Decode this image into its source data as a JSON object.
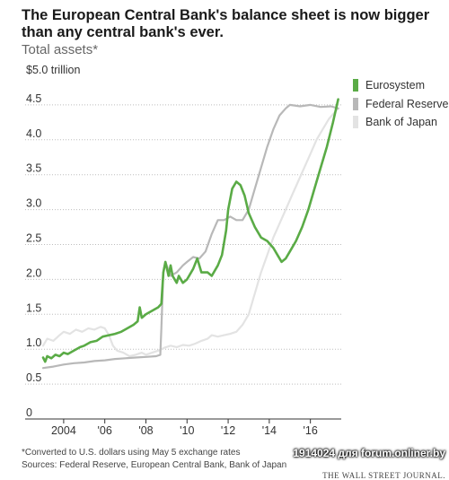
{
  "chart_data": {
    "type": "line",
    "title": "The European Central Bank's balance sheet is now bigger than any central bank's ever.",
    "subtitle": "Total assets*",
    "ylabel": "",
    "unit_label": "$5.0 trillion",
    "ylim": [
      0,
      5.0
    ],
    "xlim": [
      2003.0,
      2017.5
    ],
    "y_ticks": [
      {
        "value": 0,
        "label": "0"
      },
      {
        "value": 0.5,
        "label": "0.5"
      },
      {
        "value": 1.0,
        "label": "1.0"
      },
      {
        "value": 1.5,
        "label": "1.5"
      },
      {
        "value": 2.0,
        "label": "2.0"
      },
      {
        "value": 2.5,
        "label": "2.5"
      },
      {
        "value": 3.0,
        "label": "3.0"
      },
      {
        "value": 3.5,
        "label": "3.5"
      },
      {
        "value": 4.0,
        "label": "4.0"
      },
      {
        "value": 4.5,
        "label": "4.5"
      }
    ],
    "x_ticks": [
      {
        "value": 2004,
        "label": "2004"
      },
      {
        "value": 2006,
        "label": "'06"
      },
      {
        "value": 2008,
        "label": "'08"
      },
      {
        "value": 2010,
        "label": "'10"
      },
      {
        "value": 2012,
        "label": "'12"
      },
      {
        "value": 2014,
        "label": "'14"
      },
      {
        "value": 2016,
        "label": "'16"
      }
    ],
    "grid": true,
    "legend_position": "right",
    "series": [
      {
        "name": "Bank of Japan",
        "color": "#e3e3e3",
        "points": [
          [
            2003.0,
            1.05
          ],
          [
            2003.2,
            1.15
          ],
          [
            2003.5,
            1.12
          ],
          [
            2003.8,
            1.2
          ],
          [
            2004.0,
            1.25
          ],
          [
            2004.3,
            1.22
          ],
          [
            2004.6,
            1.28
          ],
          [
            2004.9,
            1.25
          ],
          [
            2005.2,
            1.3
          ],
          [
            2005.5,
            1.28
          ],
          [
            2005.8,
            1.32
          ],
          [
            2006.0,
            1.3
          ],
          [
            2006.2,
            1.2
          ],
          [
            2006.4,
            1.05
          ],
          [
            2006.6,
            0.98
          ],
          [
            2006.9,
            0.95
          ],
          [
            2007.2,
            0.9
          ],
          [
            2007.5,
            0.92
          ],
          [
            2007.8,
            0.95
          ],
          [
            2008.0,
            0.92
          ],
          [
            2008.3,
            0.95
          ],
          [
            2008.6,
            0.98
          ],
          [
            2008.9,
            1.02
          ],
          [
            2009.2,
            1.05
          ],
          [
            2009.5,
            1.03
          ],
          [
            2009.8,
            1.06
          ],
          [
            2010.1,
            1.05
          ],
          [
            2010.4,
            1.08
          ],
          [
            2010.7,
            1.12
          ],
          [
            2011.0,
            1.15
          ],
          [
            2011.2,
            1.2
          ],
          [
            2011.5,
            1.18
          ],
          [
            2011.8,
            1.2
          ],
          [
            2012.1,
            1.22
          ],
          [
            2012.4,
            1.25
          ],
          [
            2012.7,
            1.35
          ],
          [
            2013.0,
            1.5
          ],
          [
            2013.3,
            1.8
          ],
          [
            2013.6,
            2.1
          ],
          [
            2013.9,
            2.35
          ],
          [
            2014.2,
            2.6
          ],
          [
            2014.5,
            2.8
          ],
          [
            2014.8,
            3.0
          ],
          [
            2015.1,
            3.2
          ],
          [
            2015.4,
            3.4
          ],
          [
            2015.7,
            3.6
          ],
          [
            2016.0,
            3.8
          ],
          [
            2016.3,
            4.0
          ],
          [
            2016.6,
            4.15
          ],
          [
            2016.9,
            4.3
          ],
          [
            2017.2,
            4.4
          ],
          [
            2017.35,
            4.45
          ]
        ]
      },
      {
        "name": "Federal Reserve",
        "color": "#b8b8b8",
        "points": [
          [
            2003.0,
            0.73
          ],
          [
            2003.5,
            0.75
          ],
          [
            2004.0,
            0.78
          ],
          [
            2004.5,
            0.8
          ],
          [
            2005.0,
            0.81
          ],
          [
            2005.5,
            0.83
          ],
          [
            2006.0,
            0.84
          ],
          [
            2006.5,
            0.86
          ],
          [
            2007.0,
            0.87
          ],
          [
            2007.5,
            0.88
          ],
          [
            2008.0,
            0.89
          ],
          [
            2008.5,
            0.9
          ],
          [
            2008.7,
            0.92
          ],
          [
            2008.75,
            1.3
          ],
          [
            2008.8,
            1.7
          ],
          [
            2008.85,
            2.1
          ],
          [
            2008.95,
            2.25
          ],
          [
            2009.2,
            2.05
          ],
          [
            2009.5,
            2.1
          ],
          [
            2009.8,
            2.2
          ],
          [
            2010.0,
            2.25
          ],
          [
            2010.3,
            2.32
          ],
          [
            2010.6,
            2.3
          ],
          [
            2010.9,
            2.4
          ],
          [
            2011.2,
            2.65
          ],
          [
            2011.5,
            2.85
          ],
          [
            2011.8,
            2.85
          ],
          [
            2012.1,
            2.9
          ],
          [
            2012.4,
            2.85
          ],
          [
            2012.7,
            2.85
          ],
          [
            2013.0,
            3.0
          ],
          [
            2013.3,
            3.3
          ],
          [
            2013.6,
            3.6
          ],
          [
            2013.9,
            3.9
          ],
          [
            2014.2,
            4.15
          ],
          [
            2014.5,
            4.35
          ],
          [
            2014.8,
            4.45
          ],
          [
            2015.0,
            4.5
          ],
          [
            2015.5,
            4.48
          ],
          [
            2016.0,
            4.5
          ],
          [
            2016.5,
            4.47
          ],
          [
            2017.0,
            4.48
          ],
          [
            2017.35,
            4.45
          ]
        ]
      },
      {
        "name": "Eurosystem",
        "color": "#5aab46",
        "points": [
          [
            2003.0,
            0.88
          ],
          [
            2003.1,
            0.82
          ],
          [
            2003.2,
            0.9
          ],
          [
            2003.4,
            0.87
          ],
          [
            2003.6,
            0.92
          ],
          [
            2003.8,
            0.9
          ],
          [
            2004.0,
            0.95
          ],
          [
            2004.2,
            0.93
          ],
          [
            2004.5,
            0.98
          ],
          [
            2004.8,
            1.03
          ],
          [
            2005.0,
            1.05
          ],
          [
            2005.3,
            1.1
          ],
          [
            2005.6,
            1.12
          ],
          [
            2005.9,
            1.18
          ],
          [
            2006.2,
            1.2
          ],
          [
            2006.5,
            1.22
          ],
          [
            2006.8,
            1.25
          ],
          [
            2007.1,
            1.3
          ],
          [
            2007.4,
            1.35
          ],
          [
            2007.6,
            1.4
          ],
          [
            2007.7,
            1.6
          ],
          [
            2007.8,
            1.45
          ],
          [
            2008.0,
            1.5
          ],
          [
            2008.3,
            1.55
          ],
          [
            2008.6,
            1.6
          ],
          [
            2008.75,
            1.65
          ],
          [
            2008.85,
            2.1
          ],
          [
            2008.95,
            2.25
          ],
          [
            2009.1,
            2.05
          ],
          [
            2009.2,
            2.2
          ],
          [
            2009.3,
            2.05
          ],
          [
            2009.5,
            1.95
          ],
          [
            2009.6,
            2.05
          ],
          [
            2009.8,
            1.95
          ],
          [
            2010.0,
            2.0
          ],
          [
            2010.3,
            2.15
          ],
          [
            2010.5,
            2.3
          ],
          [
            2010.7,
            2.1
          ],
          [
            2011.0,
            2.1
          ],
          [
            2011.2,
            2.05
          ],
          [
            2011.5,
            2.2
          ],
          [
            2011.7,
            2.35
          ],
          [
            2011.9,
            2.7
          ],
          [
            2012.0,
            3.0
          ],
          [
            2012.2,
            3.3
          ],
          [
            2012.4,
            3.4
          ],
          [
            2012.6,
            3.35
          ],
          [
            2012.8,
            3.2
          ],
          [
            2013.0,
            2.95
          ],
          [
            2013.3,
            2.75
          ],
          [
            2013.6,
            2.6
          ],
          [
            2013.9,
            2.55
          ],
          [
            2014.2,
            2.45
          ],
          [
            2014.4,
            2.35
          ],
          [
            2014.6,
            2.25
          ],
          [
            2014.8,
            2.3
          ],
          [
            2015.0,
            2.4
          ],
          [
            2015.3,
            2.55
          ],
          [
            2015.6,
            2.75
          ],
          [
            2015.9,
            3.0
          ],
          [
            2016.2,
            3.3
          ],
          [
            2016.5,
            3.6
          ],
          [
            2016.8,
            3.9
          ],
          [
            2017.1,
            4.25
          ],
          [
            2017.25,
            4.45
          ],
          [
            2017.35,
            4.58
          ]
        ]
      }
    ]
  },
  "header": {
    "title": "The European Central Bank's balance sheet is now bigger than any central bank's ever.",
    "subtitle": "Total assets*",
    "unit_label": "$5.0 trillion"
  },
  "legend": {
    "items": [
      {
        "label": "Eurosystem",
        "color": "#5aab46"
      },
      {
        "label": "Federal Reserve",
        "color": "#b8b8b8"
      },
      {
        "label": "Bank of Japan",
        "color": "#e3e3e3"
      }
    ]
  },
  "footer": {
    "note": "*Converted to U.S. dollars using May 5 exchange rates",
    "sources": "Sources: Federal Reserve, European Central Bank, Bank of Japan",
    "watermark": "1914024 для forum.onliner.by",
    "publisher": "THE WALL STREET JOURNAL."
  }
}
